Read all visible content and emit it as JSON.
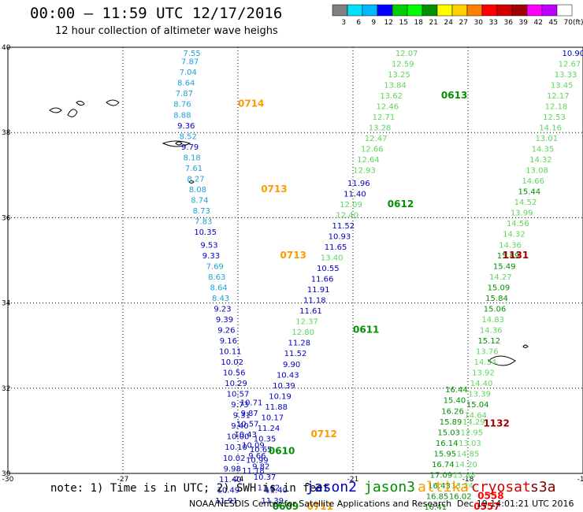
{
  "title": "00:00 – 11:59 UTC 12/17/2016",
  "subtitle": "12 hour collection of altimeter wave heighs",
  "colorbar": {
    "unit": "(ft)",
    "ticks": [
      "3",
      "6",
      "9",
      "12",
      "15",
      "18",
      "21",
      "24",
      "27",
      "30",
      "33",
      "36",
      "39",
      "42",
      "45",
      "70"
    ],
    "colors": [
      "#808080",
      "#00e0ff",
      "#00b8ff",
      "#0000ff",
      "#00d000",
      "#00ff00",
      "#009000",
      "#ffff00",
      "#ffd000",
      "#ff8000",
      "#ff0000",
      "#d00000",
      "#a00000",
      "#ff00ff",
      "#c000ff",
      "#ffffff"
    ]
  },
  "axes": {
    "x_ticks": [
      {
        "lon": -30,
        "label": "-30"
      },
      {
        "lon": -27,
        "label": "-27"
      },
      {
        "lon": -24,
        "label": "-24"
      },
      {
        "lon": -21,
        "label": "-21"
      },
      {
        "lon": -18,
        "label": "-18"
      },
      {
        "lon": -15,
        "label": "-15"
      }
    ],
    "y_ticks": [
      {
        "lat": 40,
        "label": "40"
      },
      {
        "lat": 38,
        "label": "38"
      },
      {
        "lat": 36,
        "label": "36"
      },
      {
        "lat": 34,
        "label": "34"
      },
      {
        "lat": 32,
        "label": "32"
      },
      {
        "lat": 30,
        "label": "30"
      }
    ]
  },
  "note": "note: 1) Time is in UTC; 2) SWH is in feet",
  "legend": [
    {
      "name": "jason2",
      "color": "#0000c0"
    },
    {
      "name": "jason3",
      "color": "#009000"
    },
    {
      "name": "altika",
      "color": "#ff9900"
    },
    {
      "name": "cryosat",
      "color": "#d00000"
    },
    {
      "name": "s3a",
      "color": "#800000"
    }
  ],
  "footer": "NOAA/NESDIS Center for Satellite Applications and Research",
  "timestamp": "Dec 19 14:01:21 UTC 2016",
  "tracks": [
    {
      "time": "0714",
      "time_color": "#ff9900",
      "time_lon": -24.0,
      "time_lat": 38.6,
      "points": [
        {
          "lon": -25.2,
          "lat": 39.8,
          "v": "7.55"
        },
        {
          "lon": -25.25,
          "lat": 39.6,
          "v": "7.87"
        },
        {
          "lon": -25.3,
          "lat": 39.35,
          "v": "7.04"
        },
        {
          "lon": -25.35,
          "lat": 39.1,
          "v": "8.64"
        },
        {
          "lon": -25.4,
          "lat": 38.85,
          "v": "7.87"
        },
        {
          "lon": -25.45,
          "lat": 38.6,
          "v": "8.76"
        },
        {
          "lon": -25.45,
          "lat": 38.35,
          "v": "8.88"
        },
        {
          "lon": -25.35,
          "lat": 38.1,
          "v": "9.36"
        },
        {
          "lon": -25.3,
          "lat": 37.85,
          "v": "8.52"
        },
        {
          "lon": -25.25,
          "lat": 37.6,
          "v": "9.79"
        },
        {
          "lon": -25.2,
          "lat": 37.35,
          "v": "8.18"
        },
        {
          "lon": -25.15,
          "lat": 37.1,
          "v": "7.61"
        },
        {
          "lon": -25.1,
          "lat": 36.85,
          "v": "8.27"
        }
      ]
    },
    {
      "time": "0713",
      "time_color": "#ff9900",
      "time_lon": -23.4,
      "time_lat": 36.6,
      "points": [
        {
          "lon": -25.05,
          "lat": 36.6,
          "v": "8.08"
        },
        {
          "lon": -25.0,
          "lat": 36.35,
          "v": "8.74"
        },
        {
          "lon": -24.95,
          "lat": 36.1,
          "v": "8.73"
        },
        {
          "lon": -24.9,
          "lat": 35.85,
          "v": "7.83"
        },
        {
          "lon": -24.85,
          "lat": 35.6,
          "v": "10.35"
        },
        {
          "lon": -24.75,
          "lat": 35.3,
          "v": "9.53"
        }
      ]
    },
    {
      "time": "0713",
      "time_color": "#ff9900",
      "time_lon": -22.9,
      "time_lat": 35.05,
      "points": [
        {
          "lon": -24.7,
          "lat": 35.05,
          "v": "9.33"
        },
        {
          "lon": -24.6,
          "lat": 34.8,
          "v": "7.69"
        },
        {
          "lon": -24.55,
          "lat": 34.55,
          "v": "8.63"
        },
        {
          "lon": -24.5,
          "lat": 34.3,
          "v": "8.64"
        },
        {
          "lon": -24.45,
          "lat": 34.05,
          "v": "8.43"
        }
      ]
    },
    {
      "time": "0611",
      "time_color": "#009000",
      "time_lon": -21.0,
      "time_lat": 33.3,
      "points": [
        {
          "lon": -24.4,
          "lat": 33.8,
          "v": "9.23"
        },
        {
          "lon": -24.35,
          "lat": 33.55,
          "v": "9.39"
        },
        {
          "lon": -24.3,
          "lat": 33.3,
          "v": "9.26"
        },
        {
          "lon": -24.25,
          "lat": 33.05,
          "v": "9.16"
        },
        {
          "lon": -24.2,
          "lat": 32.8,
          "v": "10.11"
        },
        {
          "lon": -24.15,
          "lat": 32.55,
          "v": "10.02"
        },
        {
          "lon": -24.1,
          "lat": 32.3,
          "v": "10.56"
        },
        {
          "lon": -24.05,
          "lat": 32.05,
          "v": "10.29"
        },
        {
          "lon": -24.0,
          "lat": 31.8,
          "v": "10.57"
        },
        {
          "lon": -23.95,
          "lat": 31.55,
          "v": "9.73"
        },
        {
          "lon": -23.9,
          "lat": 31.3,
          "v": "9.31"
        },
        {
          "lon": -23.95,
          "lat": 31.05,
          "v": "9.40"
        },
        {
          "lon": -24.0,
          "lat": 30.8,
          "v": "10.00"
        },
        {
          "lon": -24.05,
          "lat": 30.55,
          "v": "10.10"
        },
        {
          "lon": -24.1,
          "lat": 30.3,
          "v": "10.02"
        }
      ]
    },
    {
      "time": "0612",
      "time_color": "#009000",
      "time_lon": -20.1,
      "time_lat": 36.25,
      "points": [
        {
          "lon": -19.6,
          "lat": 39.8,
          "v": "12.07"
        },
        {
          "lon": -19.7,
          "lat": 39.55,
          "v": "12.59"
        },
        {
          "lon": -19.8,
          "lat": 39.3,
          "v": "13.25"
        },
        {
          "lon": -19.9,
          "lat": 39.05,
          "v": "13.84"
        },
        {
          "lon": -20.0,
          "lat": 38.8,
          "v": "13.62"
        },
        {
          "lon": -20.1,
          "lat": 38.55,
          "v": "12.46"
        },
        {
          "lon": -20.2,
          "lat": 38.3,
          "v": "12.71"
        },
        {
          "lon": -20.3,
          "lat": 38.05,
          "v": "13.28"
        },
        {
          "lon": -20.4,
          "lat": 37.8,
          "v": "12.47"
        },
        {
          "lon": -20.5,
          "lat": 37.55,
          "v": "12.66"
        },
        {
          "lon": -20.6,
          "lat": 37.3,
          "v": "12.64"
        },
        {
          "lon": -20.7,
          "lat": 37.05,
          "v": "12.93"
        },
        {
          "lon": -20.85,
          "lat": 36.75,
          "v": "11.96"
        },
        {
          "lon": -20.95,
          "lat": 36.5,
          "v": "11.40"
        },
        {
          "lon": -21.05,
          "lat": 36.25,
          "v": "12.09"
        },
        {
          "lon": -21.15,
          "lat": 36.0,
          "v": "12.40"
        },
        {
          "lon": -21.25,
          "lat": 35.75,
          "v": "11.52"
        },
        {
          "lon": -21.35,
          "lat": 35.5,
          "v": "10.93"
        },
        {
          "lon": -21.45,
          "lat": 35.25,
          "v": "11.65"
        },
        {
          "lon": -21.55,
          "lat": 35.0,
          "v": "13.40"
        },
        {
          "lon": -21.65,
          "lat": 34.75,
          "v": "10.55"
        }
      ]
    },
    {
      "time": "0613",
      "time_color": "#009000",
      "time_lon": -18.7,
      "time_lat": 38.8,
      "points": []
    },
    {
      "time": "0610",
      "time_color": "#009000",
      "time_lon": -23.2,
      "time_lat": 30.45,
      "points": [
        {
          "lon": -21.8,
          "lat": 34.5,
          "v": "11.66"
        },
        {
          "lon": -21.9,
          "lat": 34.25,
          "v": "11.91"
        },
        {
          "lon": -22.0,
          "lat": 34.0,
          "v": "11.18"
        },
        {
          "lon": -22.1,
          "lat": 33.75,
          "v": "11.61"
        },
        {
          "lon": -22.2,
          "lat": 33.5,
          "v": "12.37"
        },
        {
          "lon": -22.3,
          "lat": 33.25,
          "v": "12.80"
        },
        {
          "lon": -22.4,
          "lat": 33.0,
          "v": "11.28"
        },
        {
          "lon": -22.5,
          "lat": 32.75,
          "v": "11.52"
        },
        {
          "lon": -22.6,
          "lat": 32.5,
          "v": "9.90"
        },
        {
          "lon": -22.7,
          "lat": 32.25,
          "v": "10.43"
        },
        {
          "lon": -22.8,
          "lat": 32.0,
          "v": "10.39"
        },
        {
          "lon": -22.9,
          "lat": 31.75,
          "v": "10.19"
        },
        {
          "lon": -23.0,
          "lat": 31.5,
          "v": "11.88"
        },
        {
          "lon": -23.1,
          "lat": 31.25,
          "v": "10.17"
        },
        {
          "lon": -23.2,
          "lat": 31.0,
          "v": "11.24"
        },
        {
          "lon": -23.3,
          "lat": 30.75,
          "v": "10.35"
        },
        {
          "lon": -23.4,
          "lat": 30.5,
          "v": "10.65"
        },
        {
          "lon": -23.5,
          "lat": 30.25,
          "v": "10.99"
        },
        {
          "lon": -23.6,
          "lat": 30.0,
          "v": "11.18"
        }
      ]
    }
  ],
  "labels": [
    {
      "lon": -23.65,
      "lat": 31.6,
      "v": "10.71",
      "color": "#0000c0"
    },
    {
      "lon": -23.7,
      "lat": 31.35,
      "v": "9.87",
      "color": "#0000c0"
    },
    {
      "lon": -23.75,
      "lat": 31.1,
      "v": "10.57",
      "color": "#0000c0"
    },
    {
      "lon": -23.8,
      "lat": 30.85,
      "v": "10.43",
      "color": "#0000c0"
    },
    {
      "lon": -23.6,
      "lat": 30.6,
      "v": "10.09",
      "color": "#0000c0"
    },
    {
      "lon": -23.5,
      "lat": 30.35,
      "v": "9.66",
      "color": "#0000c0"
    },
    {
      "lon": -23.4,
      "lat": 30.1,
      "v": "9.82",
      "color": "#0000c0"
    },
    {
      "lon": -23.3,
      "lat": 29.85,
      "v": "10.37",
      "color": "#0000c0"
    },
    {
      "lon": -23.2,
      "lat": 29.6,
      "v": "11.62",
      "color": "#0000c0"
    },
    {
      "lon": -24.15,
      "lat": 30.05,
      "v": "9.98",
      "color": "#0000c0"
    },
    {
      "lon": -24.2,
      "lat": 29.8,
      "v": "11.40",
      "color": "#0000c0"
    },
    {
      "lon": -24.25,
      "lat": 29.55,
      "v": "10.49",
      "color": "#0000c0"
    },
    {
      "lon": -24.3,
      "lat": 29.3,
      "v": "11.91",
      "color": "#0000c0"
    },
    {
      "lon": -23.0,
      "lat": 29.55,
      "v": "11.40",
      "color": "#0000c0"
    },
    {
      "lon": -23.1,
      "lat": 29.3,
      "v": "11.39",
      "color": "#0000c0"
    },
    {
      "lon": -15.25,
      "lat": 39.8,
      "v": "10.90",
      "color": "#0000c0"
    },
    {
      "lon": -15.35,
      "lat": 39.55,
      "v": "12.67",
      "color": "#5cd65c"
    },
    {
      "lon": -15.45,
      "lat": 39.3,
      "v": "13.33",
      "color": "#5cd65c"
    },
    {
      "lon": -15.55,
      "lat": 39.05,
      "v": "13.45",
      "color": "#5cd65c"
    },
    {
      "lon": -15.65,
      "lat": 38.8,
      "v": "12.17",
      "color": "#5cd65c"
    },
    {
      "lon": -15.7,
      "lat": 38.55,
      "v": "12.18",
      "color": "#5cd65c"
    },
    {
      "lon": -15.75,
      "lat": 38.3,
      "v": "12.53",
      "color": "#5cd65c"
    },
    {
      "lon": -15.85,
      "lat": 38.05,
      "v": "14.16",
      "color": "#5cd65c"
    },
    {
      "lon": -15.95,
      "lat": 37.8,
      "v": "13.01",
      "color": "#5cd65c"
    },
    {
      "lon": -16.05,
      "lat": 37.55,
      "v": "14.35",
      "color": "#5cd65c"
    },
    {
      "lon": -16.1,
      "lat": 37.3,
      "v": "14.32",
      "color": "#5cd65c"
    },
    {
      "lon": -16.2,
      "lat": 37.05,
      "v": "13.08",
      "color": "#5cd65c"
    },
    {
      "lon": -16.3,
      "lat": 36.8,
      "v": "14.66",
      "color": "#5cd65c"
    },
    {
      "lon": -16.4,
      "lat": 36.55,
      "v": "15.44",
      "color": "#009000"
    },
    {
      "lon": -16.5,
      "lat": 36.3,
      "v": "14.52",
      "color": "#5cd65c"
    },
    {
      "lon": -16.6,
      "lat": 36.05,
      "v": "13.99",
      "color": "#5cd65c"
    },
    {
      "lon": -16.7,
      "lat": 35.8,
      "v": "14.56",
      "color": "#5cd65c"
    },
    {
      "lon": -16.8,
      "lat": 35.55,
      "v": "14.32",
      "color": "#5cd65c"
    },
    {
      "lon": -16.9,
      "lat": 35.3,
      "v": "14.36",
      "color": "#5cd65c"
    },
    {
      "lon": -16.95,
      "lat": 35.05,
      "v": "15.89",
      "color": "#009000"
    },
    {
      "lon": -17.05,
      "lat": 34.8,
      "v": "15.49",
      "color": "#009000"
    },
    {
      "lon": -17.15,
      "lat": 34.55,
      "v": "14.27",
      "color": "#5cd65c"
    },
    {
      "lon": -17.2,
      "lat": 34.3,
      "v": "15.09",
      "color": "#009000"
    },
    {
      "lon": -17.25,
      "lat": 34.05,
      "v": "15.84",
      "color": "#009000"
    },
    {
      "lon": -17.3,
      "lat": 33.8,
      "v": "15.06",
      "color": "#009000"
    },
    {
      "lon": -17.35,
      "lat": 33.55,
      "v": "14.83",
      "color": "#5cd65c"
    },
    {
      "lon": -17.4,
      "lat": 33.3,
      "v": "14.36",
      "color": "#5cd65c"
    },
    {
      "lon": -17.45,
      "lat": 33.05,
      "v": "15.12",
      "color": "#009000"
    },
    {
      "lon": -17.5,
      "lat": 32.8,
      "v": "13.76",
      "color": "#5cd65c"
    },
    {
      "lon": -17.55,
      "lat": 32.55,
      "v": "14.34",
      "color": "#5cd65c"
    },
    {
      "lon": -17.6,
      "lat": 32.3,
      "v": "13.92",
      "color": "#5cd65c"
    },
    {
      "lon": -17.65,
      "lat": 32.05,
      "v": "14.40",
      "color": "#5cd65c"
    },
    {
      "lon": -17.7,
      "lat": 31.8,
      "v": "13.39",
      "color": "#5cd65c"
    },
    {
      "lon": -17.75,
      "lat": 31.55,
      "v": "15.04",
      "color": "#009000"
    },
    {
      "lon": -17.8,
      "lat": 31.3,
      "v": "14.64",
      "color": "#5cd65c"
    },
    {
      "lon": -18.3,
      "lat": 31.9,
      "v": "16.44",
      "color": "#009000"
    },
    {
      "lon": -18.35,
      "lat": 31.65,
      "v": "15.40",
      "color": "#009000"
    },
    {
      "lon": -18.4,
      "lat": 31.4,
      "v": "16.26",
      "color": "#009000"
    },
    {
      "lon": -18.45,
      "lat": 31.15,
      "v": "15.89",
      "color": "#009000"
    },
    {
      "lon": -18.5,
      "lat": 30.9,
      "v": "15.03",
      "color": "#009000"
    },
    {
      "lon": -18.55,
      "lat": 30.65,
      "v": "16.14",
      "color": "#009000"
    },
    {
      "lon": -18.6,
      "lat": 30.4,
      "v": "15.95",
      "color": "#009000"
    },
    {
      "lon": -18.65,
      "lat": 30.15,
      "v": "16.74",
      "color": "#009000"
    },
    {
      "lon": -18.7,
      "lat": 29.9,
      "v": "17.09",
      "color": "#009000"
    },
    {
      "lon": -18.75,
      "lat": 29.65,
      "v": "16.43",
      "color": "#009000"
    },
    {
      "lon": -18.8,
      "lat": 29.4,
      "v": "16.85",
      "color": "#009000"
    },
    {
      "lon": -18.85,
      "lat": 29.15,
      "v": "16.41",
      "color": "#009000"
    },
    {
      "lon": -17.85,
      "lat": 31.15,
      "v": "14.29",
      "color": "#5cd65c"
    },
    {
      "lon": -17.9,
      "lat": 30.9,
      "v": "12.95",
      "color": "#5cd65c"
    },
    {
      "lon": -17.95,
      "lat": 30.65,
      "v": "13.03",
      "color": "#5cd65c"
    },
    {
      "lon": -18.0,
      "lat": 30.4,
      "v": "14.85",
      "color": "#5cd65c"
    },
    {
      "lon": -18.05,
      "lat": 30.15,
      "v": "14.20",
      "color": "#5cd65c"
    },
    {
      "lon": -18.1,
      "lat": 29.9,
      "v": "13.88",
      "color": "#5cd65c"
    },
    {
      "lon": -18.15,
      "lat": 29.65,
      "v": "13.24",
      "color": "#5cd65c"
    },
    {
      "lon": -18.2,
      "lat": 29.4,
      "v": "16.02",
      "color": "#009000"
    }
  ],
  "time_labels": [
    {
      "lon": -17.1,
      "lat": 35.05,
      "v": "1131",
      "color": "#a00000"
    },
    {
      "lon": -17.6,
      "lat": 31.1,
      "v": "1132",
      "color": "#a00000"
    },
    {
      "lon": -17.75,
      "lat": 29.4,
      "v": "0558",
      "color": "#ff0000"
    },
    {
      "lon": -17.85,
      "lat": 29.15,
      "v": "0557",
      "color": "#ff0000"
    },
    {
      "lon": -22.2,
      "lat": 29.15,
      "v": "0711",
      "color": "#ff9900"
    },
    {
      "lon": -22.1,
      "lat": 30.85,
      "v": "0712",
      "color": "#ff9900"
    },
    {
      "lon": -23.1,
      "lat": 29.15,
      "v": "0609",
      "color": "#009000"
    }
  ]
}
